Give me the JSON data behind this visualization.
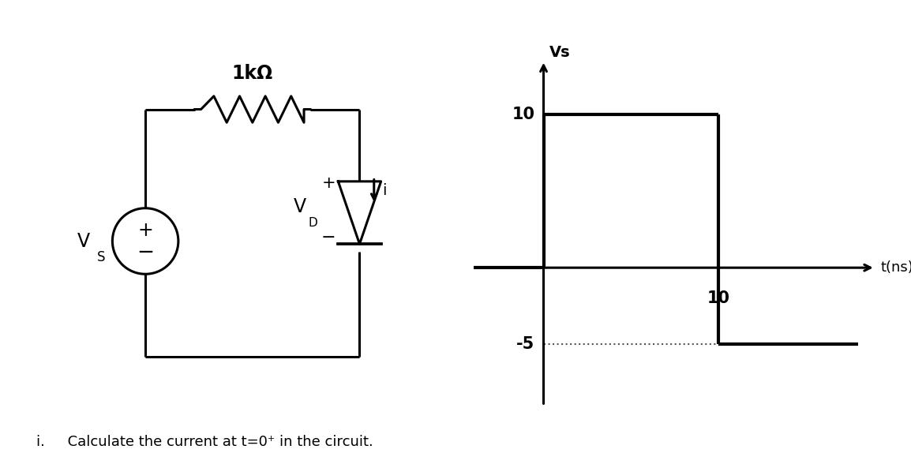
{
  "bg_color": "#ffffff",
  "resistor_label": "1kΩ",
  "vs_label": "Vs",
  "i_label": "i",
  "t_label": "t(ns)",
  "question_text": "i.     Calculate the current at t=0⁺ in the circuit.",
  "line_color": "#000000",
  "font_size_labels": 14,
  "font_size_axis": 14,
  "font_size_resistor": 17,
  "font_size_vs": 17,
  "font_size_question": 13,
  "lw_circuit": 2.2,
  "lw_signal": 3.0,
  "lw_axis": 2.2
}
